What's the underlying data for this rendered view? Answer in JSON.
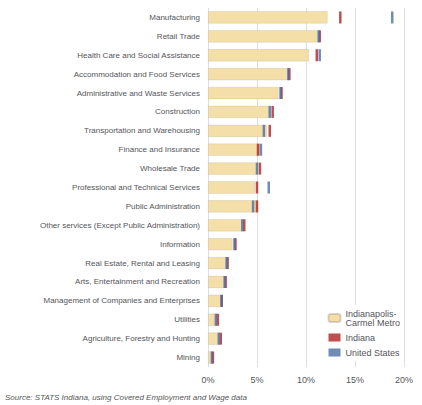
{
  "chart_data": {
    "type": "bar",
    "orientation": "horizontal",
    "categories": [
      "Manufacturing",
      "Retail Trade",
      "Health Care and Social Assistance",
      "Accommodation and Food Services",
      "Administrative and Waste Services",
      "Construction",
      "Transportation and Warehousing",
      "Finance and Insurance",
      "Wholesale Trade",
      "Professional and Technical Services",
      "Public Administration",
      "Other services (Except Public Administration)",
      "Information",
      "Real Estate, Rental and Leasing",
      "Arts, Entertainment and Recreation",
      "Management of Companies and Enterprises",
      "Utilities",
      "Agriculture, Forestry and Hunting",
      "Mining"
    ],
    "series": [
      {
        "name": "Indianapolis-\nCarmel Metro",
        "type": "bar",
        "color": "#f5dfa8",
        "values": [
          12.2,
          11.2,
          10.3,
          8.3,
          7.2,
          6.3,
          6.0,
          5.3,
          5.1,
          4.8,
          5.0,
          3.6,
          2.5,
          1.8,
          1.7,
          1.4,
          0.9,
          1.1,
          0.5
        ]
      },
      {
        "name": "Indiana",
        "type": "scatter",
        "marker": "vline",
        "color": "#b22222",
        "values": [
          13.5,
          11.4,
          11.1,
          8.3,
          7.5,
          6.6,
          6.3,
          5.1,
          5.3,
          5.0,
          5.0,
          3.7,
          2.8,
          2.0,
          1.8,
          1.4,
          1.0,
          1.3,
          0.5
        ]
      },
      {
        "name": "United States",
        "type": "scatter",
        "marker": "vline",
        "color": "#4a6fa5",
        "values": [
          18.8,
          11.3,
          11.4,
          8.2,
          7.4,
          6.3,
          5.7,
          5.4,
          5.0,
          6.2,
          4.6,
          3.5,
          2.7,
          1.9,
          1.7,
          1.4,
          0.8,
          1.1,
          0.4
        ]
      }
    ],
    "xlim": [
      0,
      20
    ],
    "xticks": [
      {
        "value": 0,
        "label": "0%"
      },
      {
        "value": 5,
        "label": "5%"
      },
      {
        "value": 10,
        "label": "10%"
      },
      {
        "value": 15,
        "label": "15%"
      },
      {
        "value": 20,
        "label": "20%"
      }
    ],
    "grid": true,
    "legend": "lower right",
    "annotations": [
      "Source: STATS Indiana, using Covered Employment and Wage data"
    ]
  }
}
